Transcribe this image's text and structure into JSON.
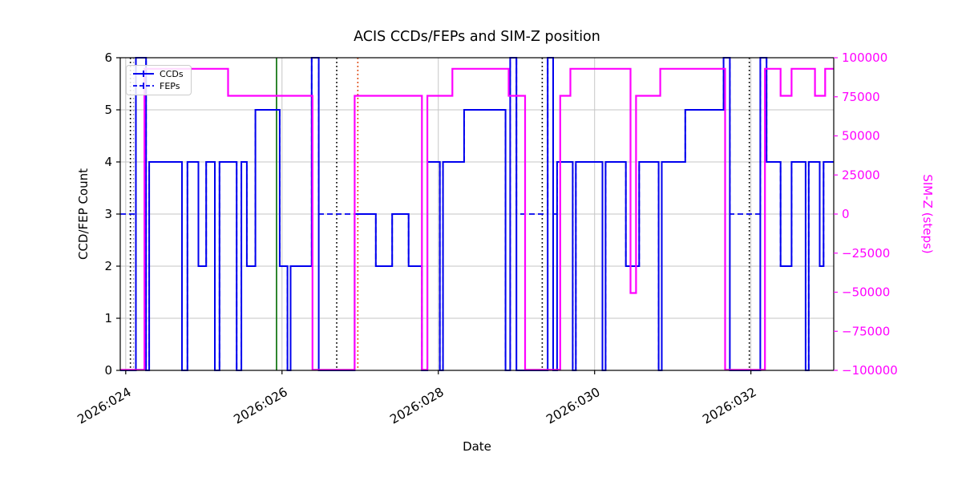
{
  "colors": {
    "ccd_line": "#0000ee",
    "simz_line": "#ff00ff",
    "grid": "#c6c6c6",
    "axis": "#000000",
    "background": "#ffffff"
  },
  "chart_data": {
    "type": "line",
    "step_style": "steps-post",
    "title": "ACIS CCDs/FEPs and SIM-Z position",
    "xlabel": "Date",
    "ylabel_left": "CCD/FEP Count",
    "ylabel_right": "SIM-Z (steps)",
    "legend": {
      "position": "upper-left",
      "entries": [
        {
          "label": "CCDs",
          "style": "solid"
        },
        {
          "label": "FEPs",
          "style": "dashed"
        }
      ]
    },
    "x_axis": {
      "min": 23.93,
      "max": 33.06,
      "ticks": [
        24,
        26,
        28,
        30,
        32
      ],
      "tick_labels": [
        "2026:024",
        "2026:026",
        "2026:028",
        "2026:030",
        "2026:032"
      ]
    },
    "y_left": {
      "min": 0,
      "max": 6,
      "ticks": [
        0,
        1,
        2,
        3,
        4,
        5,
        6
      ],
      "tick_labels": [
        "0",
        "1",
        "2",
        "3",
        "4",
        "5",
        "6"
      ]
    },
    "y_right": {
      "min": -100000,
      "max": 100000,
      "ticks": [
        100000,
        75000,
        50000,
        25000,
        0,
        -25000,
        -50000,
        -75000,
        -100000
      ],
      "tick_labels": [
        "100000",
        "75000",
        "50000",
        "25000",
        "0",
        "−25000",
        "−50000",
        "−75000",
        "−100000"
      ]
    },
    "series": [
      {
        "name": "CCDs",
        "axis": "left",
        "color": "#0000ee",
        "dash": "",
        "width": 2,
        "steps": [
          [
            23.93,
            0
          ],
          [
            24.13,
            6
          ],
          [
            24.26,
            0
          ],
          [
            24.3,
            4
          ],
          [
            24.72,
            0
          ],
          [
            24.79,
            4
          ],
          [
            24.93,
            2
          ],
          [
            25.03,
            4
          ],
          [
            25.14,
            0
          ],
          [
            25.2,
            4
          ],
          [
            25.42,
            0
          ],
          [
            25.48,
            4
          ],
          [
            25.55,
            2
          ],
          [
            25.66,
            5
          ],
          [
            25.97,
            2
          ],
          [
            26.07,
            0
          ],
          [
            26.11,
            2
          ],
          [
            26.38,
            6
          ],
          [
            26.47,
            0
          ],
          [
            26.93,
            3
          ],
          [
            27.2,
            2
          ],
          [
            27.41,
            3
          ],
          [
            27.62,
            2
          ],
          [
            27.79,
            0
          ],
          [
            27.86,
            4
          ],
          [
            28.02,
            0
          ],
          [
            28.06,
            4
          ],
          [
            28.33,
            5
          ],
          [
            28.86,
            0
          ],
          [
            28.92,
            6
          ],
          [
            29.0,
            0
          ],
          [
            29.4,
            6
          ],
          [
            29.47,
            0
          ],
          [
            29.52,
            4
          ],
          [
            29.72,
            0
          ],
          [
            29.76,
            4
          ],
          [
            30.1,
            0
          ],
          [
            30.14,
            4
          ],
          [
            30.4,
            2
          ],
          [
            30.57,
            4
          ],
          [
            30.82,
            0
          ],
          [
            30.86,
            4
          ],
          [
            31.16,
            5
          ],
          [
            31.65,
            6
          ],
          [
            31.73,
            0
          ],
          [
            32.12,
            6
          ],
          [
            32.2,
            4
          ],
          [
            32.38,
            2
          ],
          [
            32.52,
            4
          ],
          [
            32.7,
            0
          ],
          [
            32.74,
            4
          ],
          [
            32.88,
            2
          ],
          [
            32.93,
            4
          ]
        ]
      },
      {
        "name": "FEPs",
        "axis": "left",
        "color": "#0000ee",
        "dash": "7 4",
        "width": 1.8,
        "steps": [
          [
            23.93,
            3
          ],
          [
            24.13,
            6
          ],
          [
            24.26,
            0
          ],
          [
            24.3,
            4
          ],
          [
            24.72,
            0
          ],
          [
            24.79,
            4
          ],
          [
            24.93,
            2
          ],
          [
            25.03,
            4
          ],
          [
            25.14,
            0
          ],
          [
            25.2,
            4
          ],
          [
            25.42,
            0
          ],
          [
            25.48,
            4
          ],
          [
            25.55,
            2
          ],
          [
            25.66,
            5
          ],
          [
            25.97,
            2
          ],
          [
            26.07,
            0
          ],
          [
            26.11,
            2
          ],
          [
            26.38,
            6
          ],
          [
            26.47,
            3
          ],
          [
            27.2,
            2
          ],
          [
            27.41,
            3
          ],
          [
            27.62,
            2
          ],
          [
            27.79,
            0
          ],
          [
            27.86,
            4
          ],
          [
            28.02,
            0
          ],
          [
            28.06,
            4
          ],
          [
            28.33,
            5
          ],
          [
            28.86,
            0
          ],
          [
            28.92,
            6
          ],
          [
            29.0,
            3
          ],
          [
            29.4,
            6
          ],
          [
            29.47,
            3
          ],
          [
            29.52,
            4
          ],
          [
            29.72,
            0
          ],
          [
            29.76,
            4
          ],
          [
            30.1,
            0
          ],
          [
            30.14,
            4
          ],
          [
            30.4,
            2
          ],
          [
            30.57,
            4
          ],
          [
            30.82,
            0
          ],
          [
            30.86,
            4
          ],
          [
            31.16,
            5
          ],
          [
            31.65,
            6
          ],
          [
            31.73,
            3
          ],
          [
            32.12,
            6
          ],
          [
            32.2,
            4
          ],
          [
            32.38,
            2
          ],
          [
            32.52,
            4
          ],
          [
            32.7,
            0
          ],
          [
            32.74,
            4
          ],
          [
            32.88,
            2
          ],
          [
            32.93,
            4
          ]
        ]
      },
      {
        "name": "SIM-Z",
        "axis": "right",
        "color": "#ff00ff",
        "dash": "",
        "width": 2.2,
        "steps": [
          [
            23.93,
            -99616
          ],
          [
            24.24,
            92904
          ],
          [
            25.31,
            75624
          ],
          [
            26.39,
            -99616
          ],
          [
            26.93,
            75624
          ],
          [
            27.79,
            -99616
          ],
          [
            27.86,
            75624
          ],
          [
            28.18,
            92904
          ],
          [
            28.9,
            75624
          ],
          [
            29.11,
            -99616
          ],
          [
            29.56,
            75624
          ],
          [
            29.69,
            92904
          ],
          [
            30.46,
            -50505
          ],
          [
            30.53,
            75624
          ],
          [
            30.84,
            92904
          ],
          [
            31.67,
            -99616
          ],
          [
            32.18,
            92904
          ],
          [
            32.38,
            75624
          ],
          [
            32.52,
            92904
          ],
          [
            32.82,
            75624
          ],
          [
            32.95,
            92904
          ]
        ]
      }
    ],
    "vlines": [
      {
        "x": 24.06,
        "color": "#000000",
        "dash": "1.8 3.2",
        "width": 1.6
      },
      {
        "x": 24.1,
        "color": "#9a9a9a",
        "dash": "1.8 3.2",
        "width": 1.4
      },
      {
        "x": 25.93,
        "color": "#1a7a1a",
        "dash": "",
        "width": 1.8
      },
      {
        "x": 26.7,
        "color": "#000000",
        "dash": "1.8 3.2",
        "width": 1.6
      },
      {
        "x": 26.97,
        "color": "#dd3c00",
        "dash": "1.8 3.2",
        "width": 1.6
      },
      {
        "x": 29.33,
        "color": "#000000",
        "dash": "1.8 3.2",
        "width": 1.6
      },
      {
        "x": 31.98,
        "color": "#000000",
        "dash": "1.8 3.2",
        "width": 1.6
      }
    ]
  }
}
